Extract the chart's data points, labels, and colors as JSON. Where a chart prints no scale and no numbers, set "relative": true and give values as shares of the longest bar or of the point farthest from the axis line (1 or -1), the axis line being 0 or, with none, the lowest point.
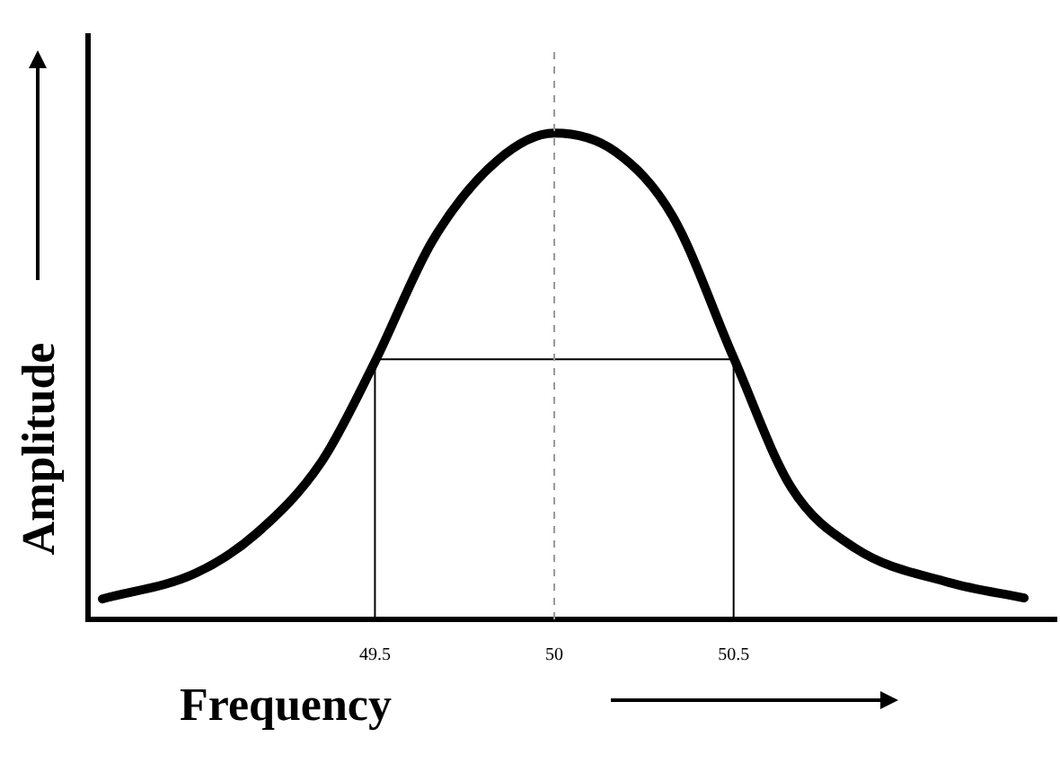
{
  "chart_data": {
    "type": "line",
    "relative": true,
    "xlabel": "Frequency",
    "ylabel": "Amplitude",
    "xlim": [
      48.7,
      51.4
    ],
    "xticks": [
      49.5,
      50,
      50.5
    ],
    "grid": false,
    "legend": false,
    "marker": "none",
    "series": [
      {
        "color": "#000000",
        "x": [
          48.74,
          49.0,
          49.17,
          49.35,
          49.5,
          49.66,
          49.84,
          50,
          50.17,
          50.33,
          50.5,
          50.66,
          50.84,
          51.1,
          51.31
        ],
        "values": [
          0.042,
          0.095,
          0.177,
          0.323,
          0.53,
          0.778,
          0.943,
          1,
          0.962,
          0.829,
          0.538,
          0.272,
          0.146,
          0.076,
          0.044
        ]
      },
      {
        "color": "#000000",
        "line_style": "solid",
        "x": [
          49.5,
          49.5,
          50.5,
          50.5
        ],
        "values": [
          0,
          0.535,
          0.535,
          0
        ]
      }
    ],
    "ref_lines": [
      {
        "axis": "x",
        "value": 50,
        "color": "#999999",
        "line_style": "dashed"
      }
    ]
  }
}
